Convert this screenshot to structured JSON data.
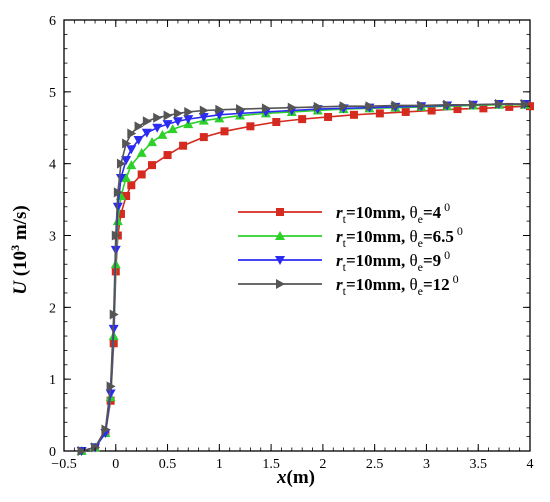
{
  "chart_data": {
    "type": "line",
    "xlabel": {
      "main": "x",
      "unit": "(m)"
    },
    "ylabel": {
      "main": "U",
      "unit_pre": " (10",
      "unit_sup": "3",
      "unit_post": " m/s)"
    },
    "xlim": [
      -0.5,
      4
    ],
    "ylim": [
      0,
      6
    ],
    "xticks": [
      -0.5,
      0,
      0.5,
      1,
      1.5,
      2,
      2.5,
      3,
      3.5,
      4
    ],
    "xtick_labels": [
      "−0.5",
      "0",
      "0.5",
      "1",
      "1.5",
      "2",
      "2.5",
      "3",
      "3.5",
      "4"
    ],
    "yticks": [
      0,
      1,
      2,
      3,
      4,
      5,
      6
    ],
    "ytick_labels": [
      "0",
      "1",
      "2",
      "3",
      "4",
      "5",
      "6"
    ],
    "legend_position": "center-right",
    "grid": false,
    "series": [
      {
        "legend": {
          "r": "r",
          "r_sub": "t",
          "rest": "=10mm,  ",
          "theta": "θ",
          "theta_sub": "e",
          "value": "=4",
          "deg": "0"
        },
        "color": "#d42a1f",
        "marker": "square",
        "x": [
          -0.33,
          -0.2,
          -0.1,
          -0.05,
          -0.02,
          0.0,
          0.02,
          0.05,
          0.1,
          0.15,
          0.25,
          0.35,
          0.5,
          0.65,
          0.85,
          1.05,
          1.3,
          1.55,
          1.8,
          2.05,
          2.3,
          2.55,
          2.8,
          3.05,
          3.3,
          3.55,
          3.8,
          4.0
        ],
        "y": [
          0.0,
          0.05,
          0.25,
          0.7,
          1.5,
          2.5,
          3.0,
          3.3,
          3.55,
          3.7,
          3.85,
          3.98,
          4.12,
          4.25,
          4.37,
          4.45,
          4.52,
          4.58,
          4.62,
          4.65,
          4.68,
          4.7,
          4.72,
          4.74,
          4.76,
          4.77,
          4.79,
          4.8
        ]
      },
      {
        "legend": {
          "r": "r",
          "r_sub": "t",
          "rest": "=10mm,  ",
          "theta": "θ",
          "theta_sub": "e",
          "value": "=6.5",
          "deg": "0"
        },
        "color": "#2ed02a",
        "marker": "triangle-up",
        "x": [
          -0.33,
          -0.2,
          -0.1,
          -0.05,
          -0.02,
          0.0,
          0.02,
          0.05,
          0.1,
          0.15,
          0.25,
          0.35,
          0.45,
          0.55,
          0.7,
          0.85,
          1.0,
          1.2,
          1.45,
          1.7,
          1.95,
          2.2,
          2.45,
          2.7,
          2.95,
          3.2,
          3.45,
          3.7,
          3.95
        ],
        "y": [
          0.0,
          0.05,
          0.25,
          0.75,
          1.6,
          2.6,
          3.2,
          3.55,
          3.8,
          3.98,
          4.15,
          4.3,
          4.4,
          4.48,
          4.55,
          4.6,
          4.63,
          4.67,
          4.7,
          4.72,
          4.74,
          4.76,
          4.77,
          4.78,
          4.79,
          4.8,
          4.81,
          4.82,
          4.82
        ]
      },
      {
        "legend": {
          "r": "r",
          "r_sub": "t",
          "rest": "=10mm,  ",
          "theta": "θ",
          "theta_sub": "e",
          "value": "=9",
          "deg": "0"
        },
        "color": "#2b2bf2",
        "marker": "triangle-down",
        "x": [
          -0.33,
          -0.2,
          -0.1,
          -0.05,
          -0.02,
          0.0,
          0.02,
          0.05,
          0.1,
          0.15,
          0.22,
          0.3,
          0.4,
          0.5,
          0.6,
          0.7,
          0.85,
          1.0,
          1.2,
          1.45,
          1.7,
          1.95,
          2.2,
          2.45,
          2.7,
          2.95,
          3.2,
          3.45,
          3.7,
          3.95
        ],
        "y": [
          0.0,
          0.05,
          0.25,
          0.8,
          1.7,
          2.8,
          3.4,
          3.8,
          4.05,
          4.2,
          4.33,
          4.43,
          4.5,
          4.55,
          4.59,
          4.62,
          4.65,
          4.68,
          4.7,
          4.72,
          4.74,
          4.76,
          4.77,
          4.78,
          4.79,
          4.8,
          4.81,
          4.82,
          4.83,
          4.83
        ]
      },
      {
        "legend": {
          "r": "r",
          "r_sub": "t",
          "rest": "=10mm,  ",
          "theta": "θ",
          "theta_sub": "e",
          "value": "=12",
          "deg": "0"
        },
        "color": "#555555",
        "marker": "triangle-right",
        "x": [
          -0.33,
          -0.2,
          -0.1,
          -0.05,
          -0.02,
          0.0,
          0.02,
          0.05,
          0.1,
          0.15,
          0.22,
          0.3,
          0.4,
          0.5,
          0.6,
          0.7,
          0.85,
          1.0,
          1.2,
          1.45,
          1.7,
          1.95,
          2.2,
          2.45,
          2.7,
          2.95,
          3.2,
          3.45,
          3.7,
          3.95
        ],
        "y": [
          0.0,
          0.05,
          0.3,
          0.9,
          1.9,
          3.0,
          3.6,
          4.0,
          4.28,
          4.42,
          4.52,
          4.59,
          4.64,
          4.67,
          4.7,
          4.72,
          4.74,
          4.75,
          4.76,
          4.77,
          4.78,
          4.79,
          4.8,
          4.8,
          4.81,
          4.81,
          4.82,
          4.82,
          4.83,
          4.83
        ]
      }
    ]
  }
}
